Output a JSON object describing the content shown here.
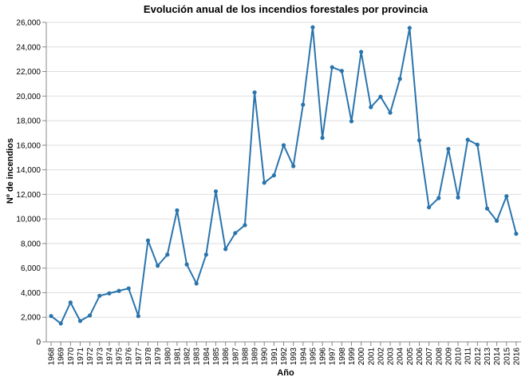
{
  "chart_data": {
    "type": "line",
    "title": "Evolución anual de los incendios forestales por provincia",
    "xlabel": "Año",
    "ylabel": "Nº de incendios",
    "ylim": [
      0,
      26000
    ],
    "yticks": [
      0,
      2000,
      4000,
      6000,
      8000,
      10000,
      12000,
      14000,
      16000,
      18000,
      20000,
      22000,
      24000,
      26000
    ],
    "ytick_labels": [
      "0",
      "2,000",
      "4,000",
      "6,000",
      "8,000",
      "10,000",
      "12,000",
      "14,000",
      "16,000",
      "18,000",
      "20,000",
      "22,000",
      "24,000",
      "26,000"
    ],
    "grid": true,
    "line_color": "#2a74ad",
    "categories": [
      "1968",
      "1969",
      "1970",
      "1971",
      "1972",
      "1973",
      "1974",
      "1975",
      "1976",
      "1977",
      "1978",
      "1979",
      "1980",
      "1981",
      "1982",
      "1983",
      "1984",
      "1985",
      "1986",
      "1987",
      "1988",
      "1989",
      "1990",
      "1991",
      "1992",
      "1993",
      "1994",
      "1995",
      "1996",
      "1997",
      "1998",
      "1999",
      "2000",
      "2001",
      "2002",
      "2003",
      "2004",
      "2005",
      "2006",
      "2007",
      "2008",
      "2009",
      "2010",
      "2011",
      "2012",
      "2013",
      "2014",
      "2015",
      "2016"
    ],
    "values": [
      2100,
      1500,
      3200,
      1700,
      2150,
      3750,
      3950,
      4150,
      4350,
      2100,
      8250,
      6200,
      7100,
      10700,
      6300,
      4750,
      7100,
      12250,
      7550,
      8850,
      9500,
      20300,
      12950,
      13550,
      16000,
      14300,
      19300,
      25600,
      16600,
      22350,
      22050,
      17950,
      23600,
      19100,
      19950,
      18650,
      21400,
      25550,
      16400,
      10950,
      11700,
      15700,
      11750,
      16450,
      16050,
      10850,
      9850,
      11850,
      8800
    ]
  }
}
